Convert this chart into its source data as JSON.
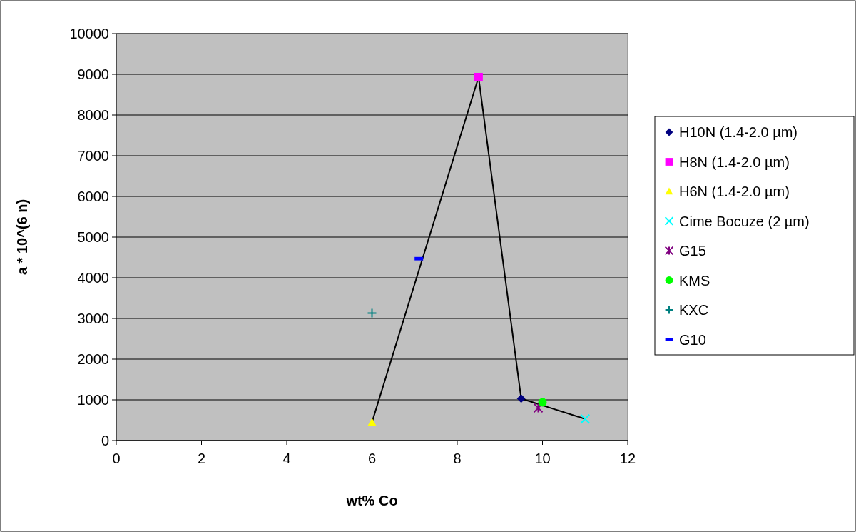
{
  "chart_data": {
    "type": "scatter",
    "xlabel": "wt% Co",
    "ylabel": "a * 10^(6 n)",
    "xlim": [
      0,
      12
    ],
    "xticks": [
      0,
      2,
      4,
      6,
      8,
      10,
      12
    ],
    "ylim": [
      0,
      10000
    ],
    "yticks": [
      0,
      1000,
      2000,
      3000,
      4000,
      5000,
      6000,
      7000,
      8000,
      9000,
      10000
    ],
    "grid": "y",
    "legend": "right",
    "series": [
      {
        "type": "line",
        "color": "#000000",
        "marker": "none",
        "x": [
          6,
          8.5,
          9.5,
          11
        ],
        "values": [
          450,
          8930,
          1030,
          530
        ]
      },
      {
        "name": "H10N (1.4-2.0 µm)",
        "color": "#000080",
        "marker": "diamond",
        "x": [
          9.5
        ],
        "values": [
          1030
        ]
      },
      {
        "name": "H8N (1.4-2.0 µm)",
        "color": "#ff00ff",
        "marker": "square",
        "x": [
          8.5
        ],
        "values": [
          8930
        ]
      },
      {
        "name": "H6N (1.4-2.0 µm)",
        "color": "#ffff00",
        "marker": "triangle",
        "x": [
          6
        ],
        "values": [
          450
        ]
      },
      {
        "name": "Cime Bocuze (2 µm)",
        "color": "#00ffff",
        "marker": "x",
        "x": [
          11
        ],
        "values": [
          530
        ]
      },
      {
        "name": "G15",
        "color": "#800080",
        "x": [
          9.9
        ],
        "values": [
          800
        ]
      },
      {
        "name": "KMS",
        "color": "#00ff00",
        "marker": "circle",
        "x": [
          10
        ],
        "values": [
          940
        ]
      },
      {
        "name": "KXC",
        "color": "#008080",
        "marker": "cross",
        "x": [
          6
        ],
        "values": [
          3130
        ]
      },
      {
        "name": "G10",
        "color": "#0000ff",
        "x": [
          7.1
        ],
        "values": [
          4470
        ]
      }
    ]
  }
}
